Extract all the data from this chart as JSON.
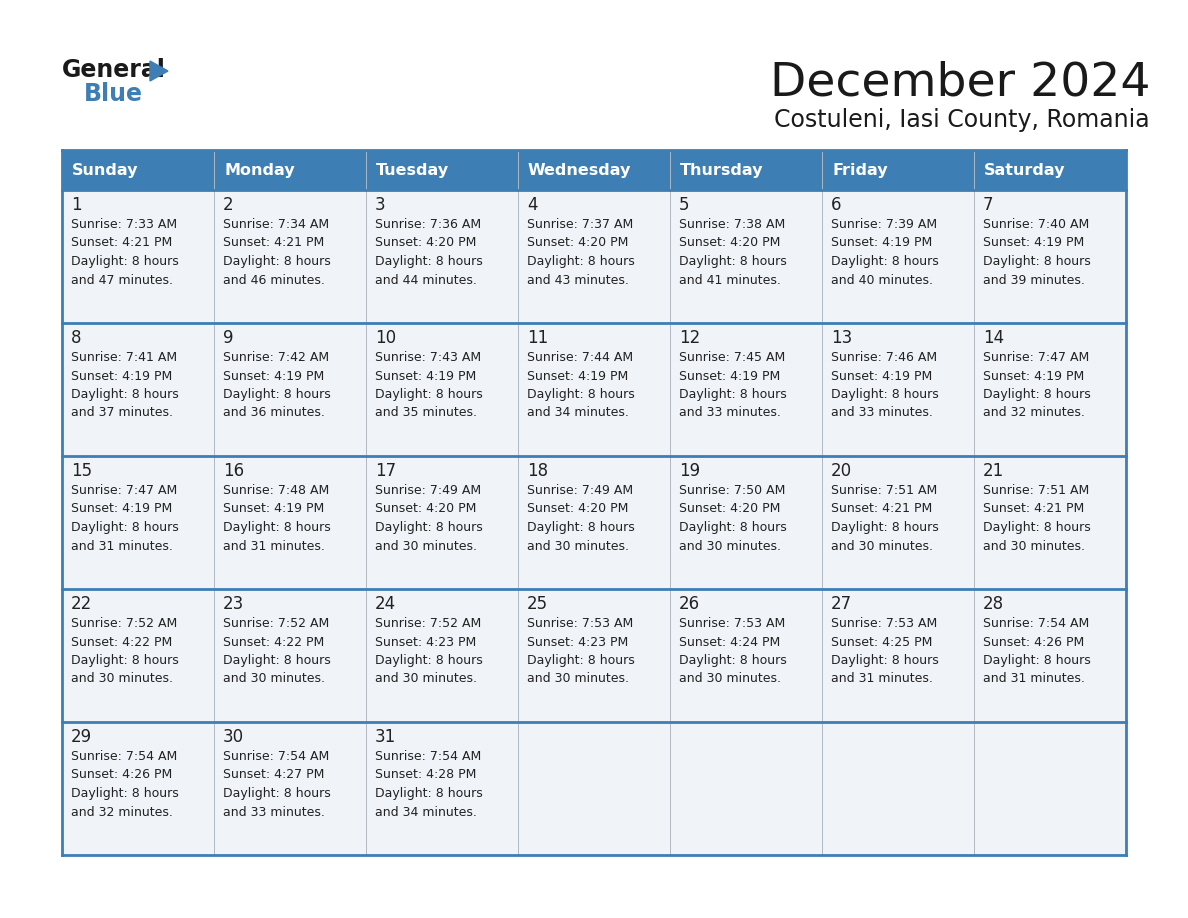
{
  "title": "December 2024",
  "subtitle": "Costuleni, Iasi County, Romania",
  "header_color": "#3d7eb5",
  "header_text_color": "#ffffff",
  "cell_bg_color": "#f0f4f8",
  "border_color": "#3d7eb5",
  "text_color": "#222222",
  "days_of_week": [
    "Sunday",
    "Monday",
    "Tuesday",
    "Wednesday",
    "Thursday",
    "Friday",
    "Saturday"
  ],
  "weeks": [
    [
      {
        "day": 1,
        "sunrise": "7:33 AM",
        "sunset": "4:21 PM",
        "daylight": "8 hours",
        "daylight2": "and 47 minutes."
      },
      {
        "day": 2,
        "sunrise": "7:34 AM",
        "sunset": "4:21 PM",
        "daylight": "8 hours",
        "daylight2": "and 46 minutes."
      },
      {
        "day": 3,
        "sunrise": "7:36 AM",
        "sunset": "4:20 PM",
        "daylight": "8 hours",
        "daylight2": "and 44 minutes."
      },
      {
        "day": 4,
        "sunrise": "7:37 AM",
        "sunset": "4:20 PM",
        "daylight": "8 hours",
        "daylight2": "and 43 minutes."
      },
      {
        "day": 5,
        "sunrise": "7:38 AM",
        "sunset": "4:20 PM",
        "daylight": "8 hours",
        "daylight2": "and 41 minutes."
      },
      {
        "day": 6,
        "sunrise": "7:39 AM",
        "sunset": "4:19 PM",
        "daylight": "8 hours",
        "daylight2": "and 40 minutes."
      },
      {
        "day": 7,
        "sunrise": "7:40 AM",
        "sunset": "4:19 PM",
        "daylight": "8 hours",
        "daylight2": "and 39 minutes."
      }
    ],
    [
      {
        "day": 8,
        "sunrise": "7:41 AM",
        "sunset": "4:19 PM",
        "daylight": "8 hours",
        "daylight2": "and 37 minutes."
      },
      {
        "day": 9,
        "sunrise": "7:42 AM",
        "sunset": "4:19 PM",
        "daylight": "8 hours",
        "daylight2": "and 36 minutes."
      },
      {
        "day": 10,
        "sunrise": "7:43 AM",
        "sunset": "4:19 PM",
        "daylight": "8 hours",
        "daylight2": "and 35 minutes."
      },
      {
        "day": 11,
        "sunrise": "7:44 AM",
        "sunset": "4:19 PM",
        "daylight": "8 hours",
        "daylight2": "and 34 minutes."
      },
      {
        "day": 12,
        "sunrise": "7:45 AM",
        "sunset": "4:19 PM",
        "daylight": "8 hours",
        "daylight2": "and 33 minutes."
      },
      {
        "day": 13,
        "sunrise": "7:46 AM",
        "sunset": "4:19 PM",
        "daylight": "8 hours",
        "daylight2": "and 33 minutes."
      },
      {
        "day": 14,
        "sunrise": "7:47 AM",
        "sunset": "4:19 PM",
        "daylight": "8 hours",
        "daylight2": "and 32 minutes."
      }
    ],
    [
      {
        "day": 15,
        "sunrise": "7:47 AM",
        "sunset": "4:19 PM",
        "daylight": "8 hours",
        "daylight2": "and 31 minutes."
      },
      {
        "day": 16,
        "sunrise": "7:48 AM",
        "sunset": "4:19 PM",
        "daylight": "8 hours",
        "daylight2": "and 31 minutes."
      },
      {
        "day": 17,
        "sunrise": "7:49 AM",
        "sunset": "4:20 PM",
        "daylight": "8 hours",
        "daylight2": "and 30 minutes."
      },
      {
        "day": 18,
        "sunrise": "7:49 AM",
        "sunset": "4:20 PM",
        "daylight": "8 hours",
        "daylight2": "and 30 minutes."
      },
      {
        "day": 19,
        "sunrise": "7:50 AM",
        "sunset": "4:20 PM",
        "daylight": "8 hours",
        "daylight2": "and 30 minutes."
      },
      {
        "day": 20,
        "sunrise": "7:51 AM",
        "sunset": "4:21 PM",
        "daylight": "8 hours",
        "daylight2": "and 30 minutes."
      },
      {
        "day": 21,
        "sunrise": "7:51 AM",
        "sunset": "4:21 PM",
        "daylight": "8 hours",
        "daylight2": "and 30 minutes."
      }
    ],
    [
      {
        "day": 22,
        "sunrise": "7:52 AM",
        "sunset": "4:22 PM",
        "daylight": "8 hours",
        "daylight2": "and 30 minutes."
      },
      {
        "day": 23,
        "sunrise": "7:52 AM",
        "sunset": "4:22 PM",
        "daylight": "8 hours",
        "daylight2": "and 30 minutes."
      },
      {
        "day": 24,
        "sunrise": "7:52 AM",
        "sunset": "4:23 PM",
        "daylight": "8 hours",
        "daylight2": "and 30 minutes."
      },
      {
        "day": 25,
        "sunrise": "7:53 AM",
        "sunset": "4:23 PM",
        "daylight": "8 hours",
        "daylight2": "and 30 minutes."
      },
      {
        "day": 26,
        "sunrise": "7:53 AM",
        "sunset": "4:24 PM",
        "daylight": "8 hours",
        "daylight2": "and 30 minutes."
      },
      {
        "day": 27,
        "sunrise": "7:53 AM",
        "sunset": "4:25 PM",
        "daylight": "8 hours",
        "daylight2": "and 31 minutes."
      },
      {
        "day": 28,
        "sunrise": "7:54 AM",
        "sunset": "4:26 PM",
        "daylight": "8 hours",
        "daylight2": "and 31 minutes."
      }
    ],
    [
      {
        "day": 29,
        "sunrise": "7:54 AM",
        "sunset": "4:26 PM",
        "daylight": "8 hours",
        "daylight2": "and 32 minutes."
      },
      {
        "day": 30,
        "sunrise": "7:54 AM",
        "sunset": "4:27 PM",
        "daylight": "8 hours",
        "daylight2": "and 33 minutes."
      },
      {
        "day": 31,
        "sunrise": "7:54 AM",
        "sunset": "4:28 PM",
        "daylight": "8 hours",
        "daylight2": "and 34 minutes."
      },
      null,
      null,
      null,
      null
    ]
  ]
}
